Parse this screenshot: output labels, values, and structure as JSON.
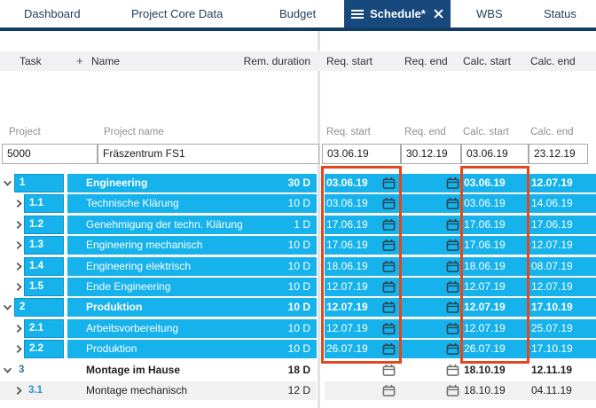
{
  "tabs": {
    "items": [
      {
        "label": "Dashboard",
        "active": false
      },
      {
        "label": "Project Core Data",
        "active": false
      },
      {
        "label": "Budget",
        "active": false
      },
      {
        "label": "Schedule*",
        "active": true
      },
      {
        "label": "WBS",
        "active": false
      },
      {
        "label": "Status",
        "active": false
      }
    ]
  },
  "table": {
    "headers": {
      "task": "Task",
      "plus": "+",
      "name": "Name",
      "rem_duration": "Rem. duration",
      "req_start": "Req. start",
      "req_end": "Req. end",
      "calc_start": "Calc. start",
      "calc_end": "Calc. end"
    }
  },
  "project": {
    "labels": {
      "project": "Project",
      "project_name": "Project name",
      "req_start": "Req. start",
      "req_end": "Req. end",
      "calc_start": "Calc. start",
      "calc_end": "Calc. end"
    },
    "values": {
      "project": "5000",
      "project_name": "Fräszentrum FS1",
      "req_start": "03.06.19",
      "req_end": "30.12.19",
      "calc_start": "03.06.19",
      "calc_end": "23.12.19"
    }
  },
  "tasks": {
    "rows": [
      {
        "id": "1",
        "name": "Engineering",
        "duration": "30 D",
        "req_start": "03.06.19",
        "req_end": "",
        "calc_start": "03.06.19",
        "calc_end": "12.07.19",
        "level": 1,
        "parent": true,
        "expanded": true,
        "highlight": true,
        "shaded": false
      },
      {
        "id": "1.1",
        "name": "Technische Klärung",
        "duration": "10 D",
        "req_start": "03.06.19",
        "req_end": "",
        "calc_start": "03.06.19",
        "calc_end": "14.06.19",
        "level": 2,
        "parent": false,
        "expanded": false,
        "highlight": true,
        "shaded": false
      },
      {
        "id": "1.2",
        "name": "Genehmigung der techn. Klärung",
        "duration": "1 D",
        "req_start": "17.06.19",
        "req_end": "",
        "calc_start": "17.06.19",
        "calc_end": "17.06.19",
        "level": 2,
        "parent": false,
        "expanded": false,
        "highlight": true,
        "shaded": false
      },
      {
        "id": "1.3",
        "name": "Engineering mechanisch",
        "duration": "10 D",
        "req_start": "17.06.19",
        "req_end": "",
        "calc_start": "17.06.19",
        "calc_end": "12.07.19",
        "level": 2,
        "parent": false,
        "expanded": false,
        "highlight": true,
        "shaded": false
      },
      {
        "id": "1.4",
        "name": "Engineering elektrisch",
        "duration": "10 D",
        "req_start": "18.06.19",
        "req_end": "",
        "calc_start": "18.06.19",
        "calc_end": "08.07.19",
        "level": 2,
        "parent": false,
        "expanded": false,
        "highlight": true,
        "shaded": false
      },
      {
        "id": "1.5",
        "name": "Ende Engineering",
        "duration": "10 D",
        "req_start": "12.07.19",
        "req_end": "",
        "calc_start": "12.07.19",
        "calc_end": "12.07.19",
        "level": 2,
        "parent": false,
        "expanded": false,
        "highlight": true,
        "shaded": false
      },
      {
        "id": "2",
        "name": "Produktion",
        "duration": "10 D",
        "req_start": "12.07.19",
        "req_end": "",
        "calc_start": "12.07.19",
        "calc_end": "17.10.19",
        "level": 1,
        "parent": true,
        "expanded": true,
        "highlight": true,
        "shaded": false
      },
      {
        "id": "2.1",
        "name": "Arbeitsvorbereitung",
        "duration": "10 D",
        "req_start": "12.07.19",
        "req_end": "",
        "calc_start": "12.07.19",
        "calc_end": "25.07.19",
        "level": 2,
        "parent": false,
        "expanded": false,
        "highlight": true,
        "shaded": false
      },
      {
        "id": "2.2",
        "name": "Produktion",
        "duration": "10 D",
        "req_start": "26.07.19",
        "req_end": "",
        "calc_start": "26.07.19",
        "calc_end": "17.10.19",
        "level": 2,
        "parent": false,
        "expanded": false,
        "highlight": true,
        "shaded": false
      },
      {
        "id": "3",
        "name": "Montage im Hause",
        "duration": "18 D",
        "req_start": "",
        "req_end": "",
        "calc_start": "18.10.19",
        "calc_end": "12.11.19",
        "level": 1,
        "parent": true,
        "expanded": true,
        "highlight": false,
        "shaded": false
      },
      {
        "id": "3.1",
        "name": "Montage mechanisch",
        "duration": "12 D",
        "req_start": "",
        "req_end": "",
        "calc_start": "18.10.19",
        "calc_end": "04.11.19",
        "level": 2,
        "parent": false,
        "expanded": false,
        "highlight": false,
        "shaded": true
      }
    ]
  },
  "icons": {
    "menu": "hamburger-icon",
    "close": "close-icon",
    "calendar": "calendar-icon",
    "expanded": "chevron-down-icon",
    "collapsed": "chevron-right-icon",
    "add_column": "plus-icon"
  },
  "colors": {
    "active-tab": "#17497C",
    "tab-underline": "#103D66",
    "row-blue": "#16B2EC",
    "row-blue-border": "#0B93CE",
    "row-shaded": "#F1F1F2",
    "header-bg": "#F1F1F4",
    "highlight-red": "#E2481C"
  }
}
